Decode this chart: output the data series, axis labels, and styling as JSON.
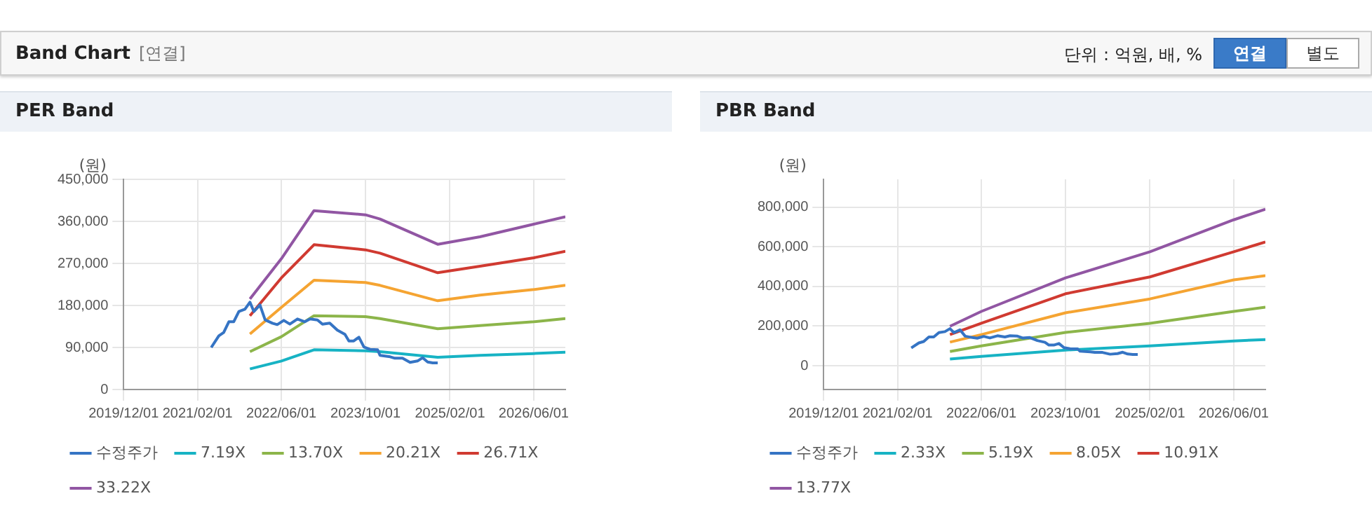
{
  "chart_data": [
    {
      "type": "other",
      "title": "Band Chart",
      "annotations": [
        "[연결]",
        "단위 : 억원, 배, %",
        "연결",
        "별도"
      ]
    },
    {
      "type": "line",
      "title": "PER Band",
      "ylabel": "(원)",
      "xlim": [
        "2019-12-01",
        "2026-12-01"
      ],
      "ylim": [
        0,
        450000
      ],
      "xticks": [
        {
          "value": "2019-12-01",
          "label": "2019/12/01"
        },
        {
          "value": "2021-02-01",
          "label": "2021/02/01"
        },
        {
          "value": "2022-06-01",
          "label": "2022/06/01"
        },
        {
          "value": "2023-10-01",
          "label": "2023/10/01"
        },
        {
          "value": "2025-02-01",
          "label": "2025/02/01"
        },
        {
          "value": "2026-06-01",
          "label": "2026/06/01"
        }
      ],
      "yticks": [
        {
          "value": 0,
          "label": "0"
        },
        {
          "value": 90000,
          "label": "90,000"
        },
        {
          "value": 180000,
          "label": "180,000"
        },
        {
          "value": 270000,
          "label": "270,000"
        },
        {
          "value": 360000,
          "label": "360,000"
        },
        {
          "value": 450000,
          "label": "450,000"
        }
      ],
      "grid": true,
      "legend": "bottom",
      "marker": "none",
      "line_style": "solid",
      "series": [
        {
          "name": "수정주가",
          "color": "#3574c4",
          "x": [
            "2021-04-21",
            "2021-06-04",
            "2021-07-02",
            "2021-08-01",
            "2021-08-29",
            "2021-09-28",
            "2021-11-02",
            "2021-12-01",
            "2021-12-24",
            "2022-01-28",
            "2022-02-27",
            "2022-04-10",
            "2022-05-08",
            "2022-06-15",
            "2022-07-20",
            "2022-09-02",
            "2022-10-15",
            "2022-11-14",
            "2022-12-27",
            "2023-01-25",
            "2023-03-08",
            "2023-04-21",
            "2023-06-04",
            "2023-06-27",
            "2023-07-25",
            "2023-08-24",
            "2023-09-22",
            "2023-10-27",
            "2023-12-10",
            "2023-12-24",
            "2024-02-21",
            "2024-03-19",
            "2024-05-02",
            "2024-06-15",
            "2024-07-28",
            "2024-08-27",
            "2024-09-25",
            "2024-10-24",
            "2024-11-22"
          ],
          "values": [
            90000,
            115000,
            122000,
            145000,
            145000,
            167000,
            172000,
            187000,
            167000,
            181000,
            149000,
            142000,
            139000,
            148000,
            140000,
            151000,
            145000,
            151000,
            149000,
            140000,
            142000,
            127000,
            118000,
            104000,
            104000,
            112000,
            91000,
            86000,
            85000,
            73000,
            70000,
            67000,
            67000,
            58000,
            61000,
            68000,
            59000,
            57000,
            57000
          ]
        },
        {
          "name": "7.19X",
          "color": "#17b3c4",
          "x": [
            "2021-12-01",
            "2022-06-01",
            "2022-12-07",
            "2023-10-01",
            "2023-12-24",
            "2024-11-22",
            "2025-07-25",
            "2026-06-01",
            "2026-12-01"
          ],
          "values": [
            44000,
            61000,
            85000,
            83000,
            81000,
            69000,
            73000,
            77000,
            80000
          ]
        },
        {
          "name": "13.70X",
          "color": "#8cb54a",
          "x": [
            "2021-12-01",
            "2022-06-01",
            "2022-12-07",
            "2023-10-01",
            "2023-12-24",
            "2024-11-22",
            "2025-07-25",
            "2026-06-01",
            "2026-12-01"
          ],
          "values": [
            81000,
            113000,
            158000,
            156000,
            152000,
            130000,
            137000,
            145000,
            152000
          ]
        },
        {
          "name": "20.21X",
          "color": "#f5a432",
          "x": [
            "2021-12-01",
            "2022-06-01",
            "2022-12-07",
            "2023-10-01",
            "2023-12-24",
            "2024-11-22",
            "2025-07-25",
            "2026-06-01",
            "2026-12-01"
          ],
          "values": [
            119000,
            176000,
            234000,
            229000,
            223000,
            190000,
            202000,
            214000,
            223000
          ]
        },
        {
          "name": "26.71X",
          "color": "#d03a31",
          "x": [
            "2021-12-01",
            "2022-06-01",
            "2022-12-07",
            "2023-10-01",
            "2023-12-24",
            "2024-11-22",
            "2025-07-25",
            "2026-06-01",
            "2026-12-01"
          ],
          "values": [
            158000,
            239000,
            310000,
            299000,
            292000,
            250000,
            264000,
            282000,
            296000
          ]
        },
        {
          "name": "33.22X",
          "color": "#9156a3",
          "x": [
            "2021-12-01",
            "2022-06-01",
            "2022-12-07",
            "2023-10-01",
            "2023-12-24",
            "2024-11-22",
            "2025-07-25",
            "2026-06-01",
            "2026-12-01"
          ],
          "values": [
            194000,
            280000,
            383000,
            374000,
            365000,
            311000,
            327000,
            354000,
            370000
          ]
        }
      ]
    },
    {
      "type": "line",
      "title": "PBR Band",
      "ylabel": "(원)",
      "xlim": [
        "2019-12-01",
        "2026-12-01"
      ],
      "ylim": [
        -120000,
        940000
      ],
      "xticks": [
        {
          "value": "2019-12-01",
          "label": "2019/12/01"
        },
        {
          "value": "2021-02-01",
          "label": "2021/02/01"
        },
        {
          "value": "2022-06-01",
          "label": "2022/06/01"
        },
        {
          "value": "2023-10-01",
          "label": "2023/10/01"
        },
        {
          "value": "2025-02-01",
          "label": "2025/02/01"
        },
        {
          "value": "2026-06-01",
          "label": "2026/06/01"
        }
      ],
      "yticks": [
        {
          "value": 0,
          "label": "0"
        },
        {
          "value": 200000,
          "label": "200,000"
        },
        {
          "value": 400000,
          "label": "400,000"
        },
        {
          "value": 600000,
          "label": "600,000"
        },
        {
          "value": 800000,
          "label": "800,000"
        }
      ],
      "grid": true,
      "legend": "bottom",
      "marker": "none",
      "line_style": "solid",
      "series": [
        {
          "name": "수정주가",
          "color": "#3574c4",
          "x": [
            "2021-04-21",
            "2021-06-04",
            "2021-07-02",
            "2021-08-01",
            "2021-08-29",
            "2021-09-28",
            "2021-11-02",
            "2021-12-01",
            "2021-12-24",
            "2022-01-28",
            "2022-02-27",
            "2022-04-10",
            "2022-05-08",
            "2022-06-15",
            "2022-07-20",
            "2022-09-02",
            "2022-10-15",
            "2022-11-14",
            "2022-12-27",
            "2023-01-25",
            "2023-03-08",
            "2023-04-21",
            "2023-06-04",
            "2023-06-27",
            "2023-07-25",
            "2023-08-24",
            "2023-09-22",
            "2023-10-27",
            "2023-12-10",
            "2023-12-24",
            "2024-02-21",
            "2024-03-19",
            "2024-05-02",
            "2024-06-15",
            "2024-07-28",
            "2024-08-27",
            "2024-09-25",
            "2024-10-24",
            "2024-11-22"
          ],
          "values": [
            90000,
            115000,
            122000,
            145000,
            145000,
            167000,
            172000,
            187000,
            167000,
            181000,
            149000,
            142000,
            139000,
            148000,
            140000,
            151000,
            145000,
            151000,
            149000,
            140000,
            142000,
            127000,
            118000,
            104000,
            104000,
            112000,
            91000,
            86000,
            85000,
            73000,
            70000,
            67000,
            67000,
            58000,
            61000,
            68000,
            59000,
            57000,
            57000
          ]
        },
        {
          "name": "2.33X",
          "color": "#17b3c4",
          "x": [
            "2021-12-01",
            "2022-06-01",
            "2023-10-01",
            "2025-02-01",
            "2026-06-01",
            "2026-12-01"
          ],
          "values": [
            34000,
            47000,
            79000,
            100000,
            125000,
            132000
          ]
        },
        {
          "name": "5.19X",
          "color": "#8cb54a",
          "x": [
            "2021-12-01",
            "2022-06-01",
            "2023-10-01",
            "2025-02-01",
            "2026-06-01",
            "2026-12-01"
          ],
          "values": [
            72000,
            100000,
            168000,
            214000,
            274000,
            295000
          ]
        },
        {
          "name": "8.05X",
          "color": "#f5a432",
          "x": [
            "2021-12-01",
            "2022-06-01",
            "2023-10-01",
            "2025-02-01",
            "2026-06-01",
            "2026-12-01"
          ],
          "values": [
            119000,
            157000,
            267000,
            337000,
            433000,
            454000
          ]
        },
        {
          "name": "10.91X",
          "color": "#d03a31",
          "x": [
            "2021-12-01",
            "2022-06-01",
            "2023-10-01",
            "2025-02-01",
            "2026-06-01",
            "2026-12-01"
          ],
          "values": [
            157000,
            214000,
            363000,
            448000,
            575000,
            624000
          ]
        },
        {
          "name": "13.77X",
          "color": "#9156a3",
          "x": [
            "2021-12-01",
            "2022-06-01",
            "2023-10-01",
            "2025-02-01",
            "2026-06-01",
            "2026-12-01"
          ],
          "values": [
            199000,
            274000,
            443000,
            575000,
            736000,
            789000
          ]
        }
      ]
    }
  ]
}
